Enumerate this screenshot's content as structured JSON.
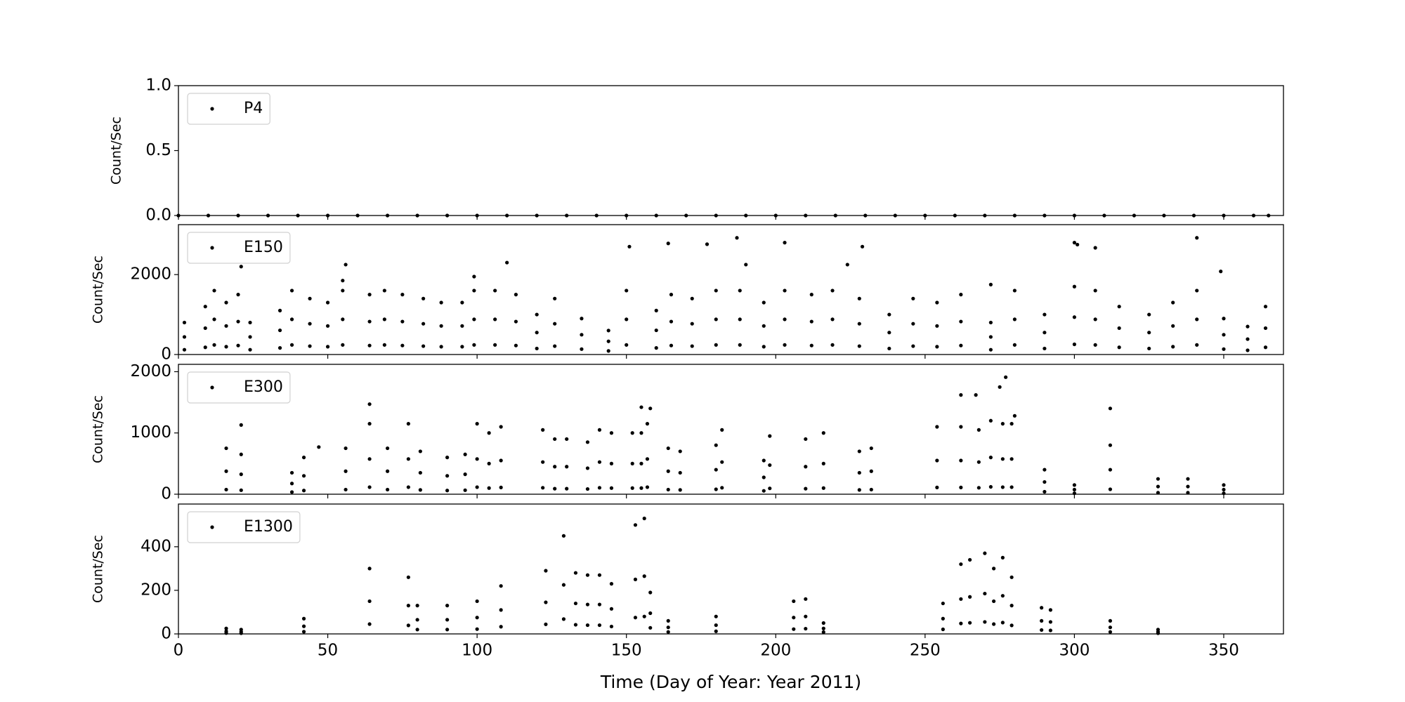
{
  "chart_data": [
    {
      "type": "scatter",
      "ylabel": "Count/Sec",
      "legend": "upper left",
      "xlim": [
        0,
        370
      ],
      "ylim": [
        0,
        1
      ],
      "yticks": [
        {
          "value": 0,
          "label": "0.0"
        },
        {
          "value": 0.5,
          "label": "0.5"
        },
        {
          "value": 1,
          "label": "1.0"
        }
      ],
      "series": [
        {
          "name": "P4",
          "color": "#000000",
          "x": [
            0,
            10,
            20,
            30,
            40,
            50,
            60,
            70,
            80,
            90,
            100,
            110,
            120,
            130,
            140,
            150,
            160,
            170,
            180,
            190,
            200,
            210,
            220,
            230,
            240,
            250,
            260,
            270,
            280,
            290,
            300,
            310,
            320,
            330,
            340,
            350,
            360,
            365
          ],
          "values": [
            0,
            0,
            0,
            0,
            0,
            0,
            0,
            0,
            0,
            0,
            0,
            0,
            0,
            0,
            0,
            0,
            0,
            0,
            0,
            0,
            0,
            0,
            0,
            0,
            0,
            0,
            0,
            0,
            0,
            0,
            0,
            0,
            0,
            0,
            0,
            0,
            0,
            0
          ]
        }
      ]
    },
    {
      "type": "scatter",
      "ylabel": "Count/Sec",
      "legend": "upper left",
      "xlim": [
        0,
        370
      ],
      "ylim": [
        0,
        3250
      ],
      "yticks": [
        0,
        2000
      ],
      "series": [
        {
          "name": "E150",
          "color": "#000000",
          "x": [
            2,
            2,
            2,
            9,
            9,
            9,
            12,
            12,
            12,
            16,
            16,
            16,
            20,
            20,
            20,
            24,
            24,
            24,
            34,
            34,
            34,
            38,
            38,
            38,
            44,
            44,
            44,
            50,
            50,
            50,
            55,
            55,
            55,
            64,
            64,
            64,
            69,
            69,
            69,
            75,
            75,
            75,
            82,
            82,
            82,
            88,
            88,
            88,
            95,
            95,
            95,
            99,
            99,
            99,
            106,
            106,
            106,
            113,
            113,
            113,
            120,
            120,
            120,
            126,
            126,
            126,
            135,
            135,
            135,
            144,
            144,
            144,
            150,
            150,
            150,
            160,
            160,
            160,
            165,
            165,
            165,
            172,
            172,
            172,
            180,
            180,
            180,
            188,
            188,
            188,
            196,
            196,
            196,
            203,
            203,
            203,
            212,
            212,
            212,
            219,
            219,
            219,
            228,
            228,
            228,
            238,
            238,
            238,
            246,
            246,
            246,
            254,
            254,
            254,
            262,
            262,
            262,
            272,
            272,
            272,
            280,
            280,
            280,
            290,
            290,
            290,
            300,
            300,
            300,
            307,
            307,
            307,
            315,
            315,
            315,
            325,
            325,
            325,
            333,
            333,
            333,
            341,
            341,
            341,
            350,
            350,
            350,
            358,
            358,
            358,
            364,
            364,
            364,
            21,
            56,
            99,
            110,
            151,
            164,
            177,
            187,
            190,
            203,
            224,
            229,
            300,
            301,
            307,
            341,
            349,
            272,
            55
          ],
          "values": [
            800,
            440,
            120,
            1200,
            660,
            180,
            1600,
            880,
            240,
            1300,
            715,
            195,
            1500,
            825,
            225,
            800,
            440,
            120,
            1100,
            605,
            165,
            1600,
            880,
            240,
            1400,
            770,
            210,
            1300,
            715,
            195,
            1600,
            880,
            240,
            1500,
            825,
            225,
            1600,
            880,
            240,
            1500,
            825,
            225,
            1400,
            770,
            210,
            1300,
            715,
            195,
            1300,
            715,
            195,
            1600,
            880,
            240,
            1600,
            880,
            240,
            1500,
            825,
            225,
            1000,
            550,
            150,
            1400,
            770,
            210,
            900,
            495,
            135,
            600,
            330,
            90,
            1600,
            880,
            240,
            1100,
            605,
            165,
            1500,
            825,
            225,
            1400,
            770,
            210,
            1600,
            880,
            240,
            1600,
            880,
            240,
            1300,
            715,
            195,
            1600,
            880,
            240,
            1500,
            825,
            225,
            1600,
            880,
            240,
            1400,
            770,
            210,
            1000,
            550,
            150,
            1400,
            770,
            210,
            1300,
            715,
            195,
            1500,
            825,
            225,
            800,
            440,
            120,
            1600,
            880,
            240,
            1000,
            550,
            150,
            1700,
            935,
            255,
            1600,
            880,
            240,
            1200,
            660,
            180,
            1000,
            550,
            150,
            1300,
            715,
            195,
            1600,
            880,
            240,
            900,
            495,
            135,
            700,
            385,
            105,
            1200,
            660,
            180,
            2200,
            2250,
            1950,
            2300,
            2700,
            2780,
            2760,
            2920,
            2250,
            2800,
            2250,
            2700,
            2800,
            2750,
            2670,
            2920,
            2080,
            1750,
            1850
          ]
        }
      ]
    },
    {
      "type": "scatter",
      "ylabel": "Count/Sec",
      "legend": "upper left",
      "xlim": [
        0,
        370
      ],
      "ylim": [
        0,
        2120
      ],
      "yticks": [
        0,
        1000,
        2000
      ],
      "series": [
        {
          "name": "E300",
          "color": "#000000",
          "x": [
            16,
            16,
            16,
            21,
            21,
            21,
            38,
            38,
            38,
            42,
            42,
            42,
            56,
            56,
            56,
            64,
            64,
            64,
            70,
            70,
            70,
            77,
            77,
            77,
            81,
            81,
            81,
            90,
            90,
            90,
            96,
            96,
            96,
            100,
            100,
            100,
            104,
            104,
            104,
            108,
            108,
            108,
            122,
            122,
            122,
            126,
            126,
            126,
            130,
            130,
            130,
            137,
            137,
            137,
            141,
            141,
            141,
            145,
            145,
            145,
            152,
            152,
            152,
            155,
            155,
            155,
            157,
            157,
            157,
            164,
            164,
            164,
            168,
            168,
            168,
            180,
            180,
            180,
            182,
            182,
            182,
            196,
            196,
            196,
            198,
            198,
            198,
            210,
            210,
            210,
            216,
            216,
            216,
            228,
            228,
            228,
            232,
            232,
            232,
            254,
            254,
            254,
            262,
            262,
            262,
            268,
            268,
            268,
            272,
            272,
            272,
            276,
            276,
            276,
            279,
            279,
            279,
            290,
            290,
            290,
            300,
            300,
            300,
            312,
            312,
            312,
            328,
            328,
            328,
            338,
            338,
            338,
            350,
            350,
            350,
            64,
            21,
            47,
            155,
            158,
            262,
            267,
            275,
            277,
            280,
            312
          ],
          "values": [
            750,
            375,
            75,
            650,
            325,
            65,
            350,
            175,
            35,
            600,
            300,
            60,
            750,
            375,
            75,
            1150,
            575,
            115,
            750,
            375,
            75,
            1150,
            575,
            115,
            700,
            350,
            70,
            600,
            300,
            60,
            650,
            325,
            65,
            1150,
            575,
            115,
            1000,
            500,
            100,
            1100,
            550,
            110,
            1050,
            525,
            105,
            900,
            450,
            90,
            900,
            450,
            90,
            850,
            425,
            85,
            1050,
            525,
            105,
            1000,
            500,
            100,
            1000,
            500,
            100,
            1000,
            500,
            100,
            1150,
            575,
            115,
            750,
            375,
            75,
            700,
            350,
            70,
            800,
            400,
            80,
            1050,
            525,
            105,
            550,
            275,
            55,
            950,
            475,
            95,
            900,
            450,
            90,
            1000,
            500,
            100,
            700,
            350,
            70,
            750,
            375,
            75,
            1100,
            550,
            110,
            1100,
            550,
            110,
            1050,
            525,
            105,
            1200,
            600,
            120,
            1150,
            575,
            115,
            1150,
            575,
            115,
            400,
            200,
            40,
            150,
            75,
            15,
            800,
            400,
            80,
            250,
            125,
            25,
            250,
            125,
            25,
            150,
            75,
            15,
            1470,
            1130,
            770,
            1420,
            1400,
            1620,
            1620,
            1750,
            1910,
            1280,
            1400
          ]
        }
      ]
    },
    {
      "type": "scatter",
      "ylabel": "Count/Sec",
      "legend": "upper left",
      "xlabel": "Time (Day of Year: Year 2011)",
      "xlim": [
        0,
        370
      ],
      "ylim": [
        0,
        596
      ],
      "yticks": [
        0,
        200,
        400
      ],
      "xticks": [
        0,
        50,
        100,
        150,
        200,
        250,
        300,
        350
      ],
      "series": [
        {
          "name": "E1300",
          "color": "#000000",
          "x": [
            16,
            16,
            16,
            21,
            21,
            21,
            42,
            42,
            42,
            64,
            64,
            64,
            77,
            77,
            77,
            80,
            80,
            80,
            90,
            90,
            90,
            100,
            100,
            100,
            108,
            108,
            108,
            123,
            123,
            123,
            129,
            129,
            129,
            133,
            133,
            133,
            137,
            137,
            137,
            141,
            141,
            141,
            145,
            145,
            145,
            153,
            153,
            153,
            156,
            156,
            156,
            158,
            158,
            158,
            164,
            164,
            164,
            180,
            180,
            180,
            206,
            206,
            206,
            210,
            210,
            210,
            216,
            216,
            216,
            256,
            256,
            256,
            262,
            262,
            262,
            265,
            265,
            265,
            270,
            270,
            270,
            273,
            273,
            273,
            276,
            276,
            276,
            279,
            279,
            279,
            289,
            289,
            289,
            292,
            292,
            292,
            312,
            312,
            312,
            328,
            328,
            328
          ],
          "values": [
            25,
            12,
            4,
            20,
            10,
            3,
            70,
            35,
            10,
            300,
            150,
            45,
            260,
            130,
            39,
            130,
            65,
            20,
            130,
            65,
            20,
            150,
            75,
            22,
            220,
            110,
            33,
            290,
            145,
            44,
            450,
            225,
            68,
            280,
            140,
            42,
            270,
            135,
            40,
            270,
            135,
            40,
            230,
            115,
            34,
            500,
            250,
            75,
            530,
            265,
            80,
            190,
            95,
            28,
            60,
            30,
            9,
            80,
            40,
            12,
            150,
            75,
            22,
            160,
            80,
            24,
            50,
            25,
            8,
            140,
            70,
            21,
            320,
            160,
            48,
            340,
            170,
            51,
            370,
            185,
            55,
            300,
            150,
            45,
            350,
            175,
            52,
            260,
            130,
            39,
            120,
            60,
            18,
            110,
            55,
            16,
            60,
            30,
            9,
            20,
            10,
            3
          ]
        }
      ]
    }
  ]
}
